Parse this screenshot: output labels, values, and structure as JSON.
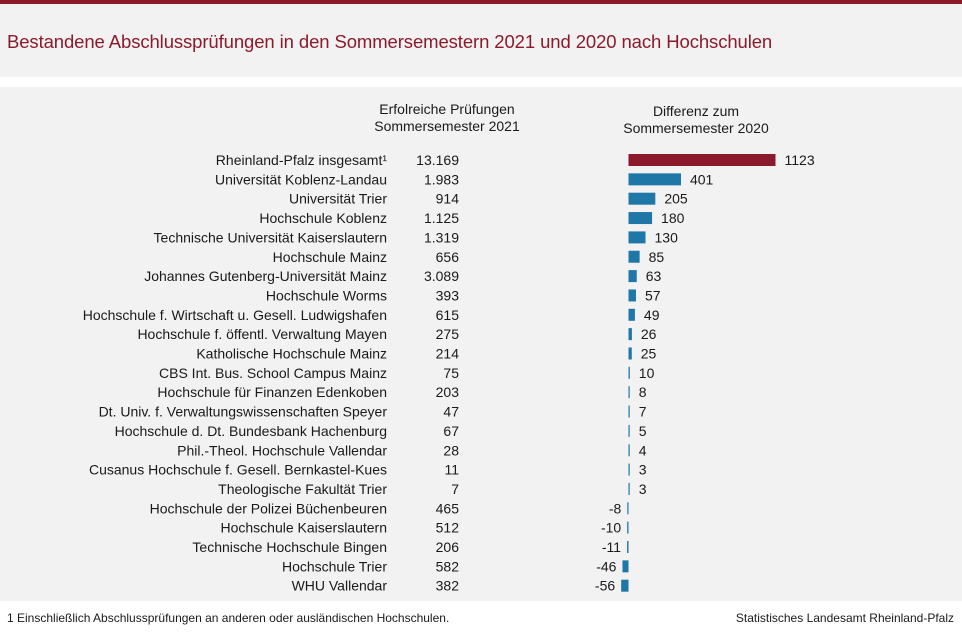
{
  "title": "Bestandene Abschlussprüfungen in den Sommersemestern 2021 und 2020 nach Hochschulen",
  "columns": {
    "count_header": [
      "Erfolreiche  Prüfungen",
      "Sommersemester 2021"
    ],
    "diff_header": [
      "Differenz  zum",
      "Sommersemester 2020"
    ]
  },
  "footnote": "1 Einschließlich Abschlussprüfungen  an anderen  oder ausländischen Hochschulen.",
  "source": "Statistisches Landesamt Rheinland-Pfalz",
  "colors": {
    "total_bar": "#8b1a2b",
    "bar": "#1f77a8",
    "title": "#8b1a2b",
    "background": "#f2f2f2"
  },
  "chart_data": {
    "type": "bar",
    "orientation": "horizontal",
    "categories": [
      "Rheinland-Pfalz insgesamt¹",
      "Universität Koblenz-Landau",
      "Universität Trier",
      "Hochschule Koblenz",
      "Technische Universität Kaiserslautern",
      "Hochschule Mainz",
      "Johannes Gutenberg-Universität Mainz",
      "Hochschule Worms",
      "Hochschule f. Wirtschaft u. Gesell. Ludwigshafen",
      "Hochschule f. öffentl. Verwaltung Mayen",
      "Katholische Hochschule Mainz",
      "CBS Int. Bus. School Campus Mainz",
      "Hochschule für Finanzen Edenkoben",
      "Dt. Univ. f. Verwaltungswissenschaften Speyer",
      "Hochschule d. Dt. Bundesbank Hachenburg",
      "Phil.-Theol. Hochschule Vallendar",
      "Cusanus Hochschule f. Gesell. Bernkastel-Kues",
      "Theologische Fakultät Trier",
      "Hochschule der Polizei Büchenbeuren",
      "Hochschule Kaiserslautern",
      "Technische Hochschule Bingen",
      "Hochschule Trier",
      "WHU Vallendar"
    ],
    "counts": [
      "13.169",
      "1.983",
      "914",
      "1.125",
      "1.319",
      "656",
      "3.089",
      "393",
      "615",
      "275",
      "214",
      "75",
      "203",
      "47",
      "67",
      "28",
      "11",
      "7",
      "465",
      "512",
      "206",
      "582",
      "382"
    ],
    "values": [
      1123,
      401,
      205,
      180,
      130,
      85,
      63,
      57,
      49,
      26,
      25,
      10,
      8,
      7,
      5,
      4,
      3,
      3,
      -8,
      -10,
      -11,
      -46,
      -56
    ]
  }
}
